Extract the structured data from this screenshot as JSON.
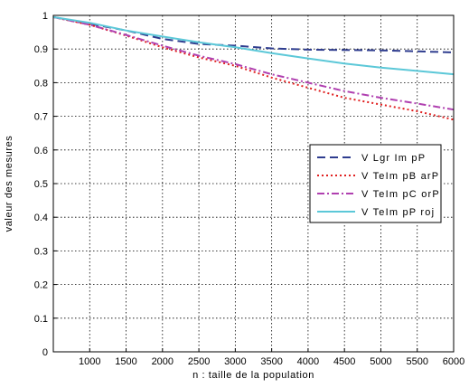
{
  "chart_data": {
    "type": "line",
    "title": "",
    "xlabel": "n : taille de la population",
    "ylabel": "valeur des mesures",
    "xlim": [
      500,
      6000
    ],
    "ylim": [
      0,
      1
    ],
    "xticks": [
      1000,
      1500,
      2000,
      2500,
      3000,
      3500,
      4000,
      4500,
      5000,
      5500,
      6000
    ],
    "xtick_labels": [
      "1000",
      "1500",
      "2000",
      "2500",
      "3000",
      "3500",
      "4000",
      "4500",
      "5000",
      "5500",
      "6000"
    ],
    "yticks": [
      0,
      0.1,
      0.2,
      0.3,
      0.4,
      0.5,
      0.6,
      0.7,
      0.8,
      0.9,
      1
    ],
    "ytick_labels": [
      "0",
      "0.1",
      "0.2",
      "0.3",
      "0.4",
      "0.5",
      "0.6",
      "0.7",
      "0.8",
      "0.9",
      "1"
    ],
    "grid": true,
    "legend_position": "right",
    "series": [
      {
        "name": "V Lgr Im pP",
        "color": "#2f3d8f",
        "dash": "long-dash",
        "x": [
          500,
          1000,
          1500,
          2000,
          2500,
          3000,
          3500,
          4000,
          4500,
          5000,
          5500,
          6000
        ],
        "y": [
          0.995,
          0.975,
          0.955,
          0.93,
          0.915,
          0.91,
          0.902,
          0.898,
          0.897,
          0.896,
          0.893,
          0.89
        ]
      },
      {
        "name": "V TeIm pB arP",
        "color": "#e02020",
        "dash": "dotted",
        "x": [
          500,
          1000,
          1500,
          2000,
          2500,
          3000,
          3500,
          4000,
          4500,
          5000,
          5500,
          6000
        ],
        "y": [
          0.995,
          0.972,
          0.94,
          0.905,
          0.875,
          0.85,
          0.815,
          0.785,
          0.755,
          0.735,
          0.715,
          0.69
        ]
      },
      {
        "name": "V TeIm pC orP",
        "color": "#b040b0",
        "dash": "dash-dot",
        "x": [
          500,
          1000,
          1500,
          2000,
          2500,
          3000,
          3500,
          4000,
          4500,
          5000,
          5500,
          6000
        ],
        "y": [
          0.995,
          0.972,
          0.942,
          0.91,
          0.88,
          0.855,
          0.825,
          0.8,
          0.775,
          0.755,
          0.738,
          0.72
        ]
      },
      {
        "name": "V TeIm pP roj",
        "color": "#5cc8d8",
        "dash": "solid",
        "x": [
          500,
          1000,
          1500,
          2000,
          2500,
          3000,
          3500,
          4000,
          4500,
          5000,
          5500,
          6000
        ],
        "y": [
          0.995,
          0.978,
          0.955,
          0.937,
          0.92,
          0.905,
          0.888,
          0.872,
          0.857,
          0.845,
          0.835,
          0.825
        ]
      }
    ]
  }
}
